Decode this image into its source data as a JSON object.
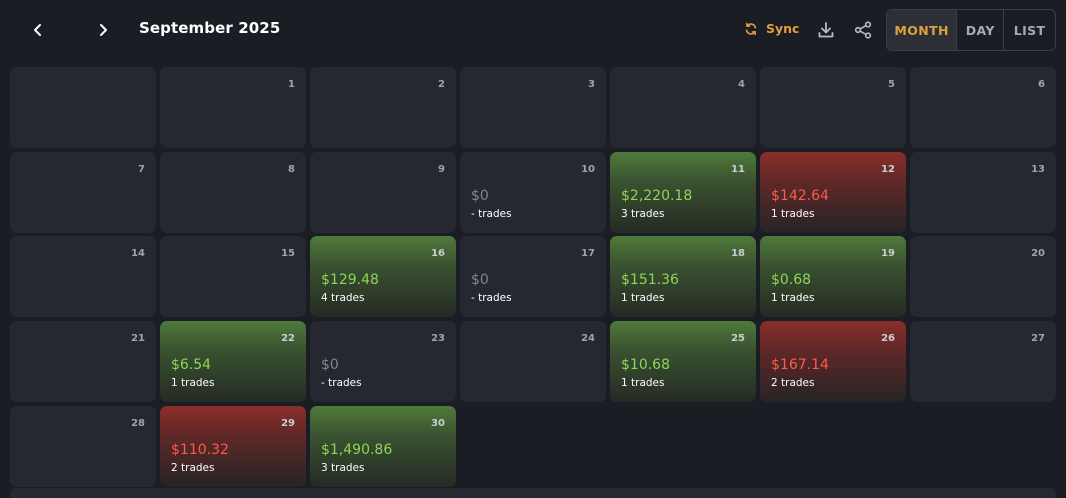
{
  "header": {
    "title": "September 2025",
    "sync_label": "Sync",
    "views": [
      "MONTH",
      "DAY",
      "LIST"
    ],
    "active_view": "MONTH"
  },
  "colors": {
    "accent": "#e0a03c",
    "profit": "#8fd45a",
    "loss": "#ff5a4a",
    "neutral": "#7f8594",
    "background": "#1a1d24",
    "cell": "#252830"
  },
  "calendar": {
    "weeks": [
      [
        {
          "day": "",
          "amount": "",
          "trades": "",
          "status": "empty"
        },
        {
          "day": "1",
          "amount": "",
          "trades": "",
          "status": "empty"
        },
        {
          "day": "2",
          "amount": "",
          "trades": "",
          "status": "empty"
        },
        {
          "day": "3",
          "amount": "",
          "trades": "",
          "status": "empty"
        },
        {
          "day": "4",
          "amount": "",
          "trades": "",
          "status": "empty"
        },
        {
          "day": "5",
          "amount": "",
          "trades": "",
          "status": "empty"
        },
        {
          "day": "6",
          "amount": "",
          "trades": "",
          "status": "empty"
        }
      ],
      [
        {
          "day": "7",
          "amount": "",
          "trades": "",
          "status": "empty"
        },
        {
          "day": "8",
          "amount": "",
          "trades": "",
          "status": "empty"
        },
        {
          "day": "9",
          "amount": "",
          "trades": "",
          "status": "empty"
        },
        {
          "day": "10",
          "amount": "$0",
          "trades": "- trades",
          "status": "zero"
        },
        {
          "day": "11",
          "amount": "$2,220.18",
          "trades": "3 trades",
          "status": "profit"
        },
        {
          "day": "12",
          "amount": "$142.64",
          "trades": "1 trades",
          "status": "loss"
        },
        {
          "day": "13",
          "amount": "",
          "trades": "",
          "status": "empty"
        }
      ],
      [
        {
          "day": "14",
          "amount": "",
          "trades": "",
          "status": "empty"
        },
        {
          "day": "15",
          "amount": "",
          "trades": "",
          "status": "empty"
        },
        {
          "day": "16",
          "amount": "$129.48",
          "trades": "4 trades",
          "status": "profit"
        },
        {
          "day": "17",
          "amount": "$0",
          "trades": "- trades",
          "status": "zero"
        },
        {
          "day": "18",
          "amount": "$151.36",
          "trades": "1 trades",
          "status": "profit"
        },
        {
          "day": "19",
          "amount": "$0.68",
          "trades": "1 trades",
          "status": "profit"
        },
        {
          "day": "20",
          "amount": "",
          "trades": "",
          "status": "empty"
        }
      ],
      [
        {
          "day": "21",
          "amount": "",
          "trades": "",
          "status": "empty"
        },
        {
          "day": "22",
          "amount": "$6.54",
          "trades": "1 trades",
          "status": "profit"
        },
        {
          "day": "23",
          "amount": "$0",
          "trades": "- trades",
          "status": "zero"
        },
        {
          "day": "24",
          "amount": "",
          "trades": "",
          "status": "empty"
        },
        {
          "day": "25",
          "amount": "$10.68",
          "trades": "1 trades",
          "status": "profit"
        },
        {
          "day": "26",
          "amount": "$167.14",
          "trades": "2 trades",
          "status": "loss"
        },
        {
          "day": "27",
          "amount": "",
          "trades": "",
          "status": "empty"
        }
      ],
      [
        {
          "day": "28",
          "amount": "",
          "trades": "",
          "status": "empty"
        },
        {
          "day": "29",
          "amount": "$110.32",
          "trades": "2 trades",
          "status": "loss"
        },
        {
          "day": "30",
          "amount": "$1,490.86",
          "trades": "3 trades",
          "status": "profit"
        }
      ]
    ]
  }
}
